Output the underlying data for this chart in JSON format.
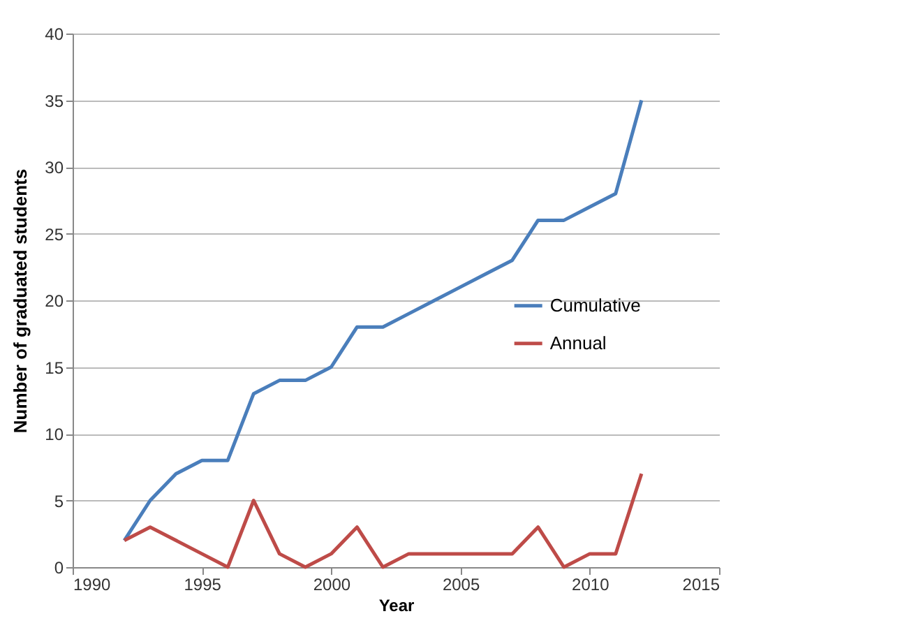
{
  "chart_data": {
    "type": "line",
    "xlabel": "Year",
    "ylabel": "Number of graduated students",
    "x": [
      1992,
      1993,
      1994,
      1995,
      1996,
      1997,
      1998,
      1999,
      2000,
      2001,
      2002,
      2003,
      2004,
      2005,
      2006,
      2007,
      2008,
      2009,
      2010,
      2011,
      2012
    ],
    "series": [
      {
        "name": "Cumulative",
        "color": "#4a7ebb",
        "values": [
          2,
          5,
          7,
          8,
          8,
          13,
          14,
          14,
          15,
          18,
          18,
          19,
          20,
          21,
          22,
          23,
          26,
          26,
          27,
          28,
          35
        ]
      },
      {
        "name": "Annual",
        "color": "#be4b48",
        "values": [
          2,
          3,
          2,
          1,
          0,
          5,
          1,
          0,
          1,
          3,
          0,
          1,
          1,
          1,
          1,
          1,
          3,
          0,
          1,
          1,
          7
        ]
      }
    ],
    "xlim": [
      1990,
      2015
    ],
    "xticks": [
      1990,
      1995,
      2000,
      2005,
      2010,
      2015
    ],
    "ylim": [
      0,
      40
    ],
    "yticks": [
      0,
      5,
      10,
      15,
      20,
      25,
      30,
      35,
      40
    ],
    "grid": "y",
    "legend": "right",
    "marker": "none",
    "line_style": "solid"
  }
}
